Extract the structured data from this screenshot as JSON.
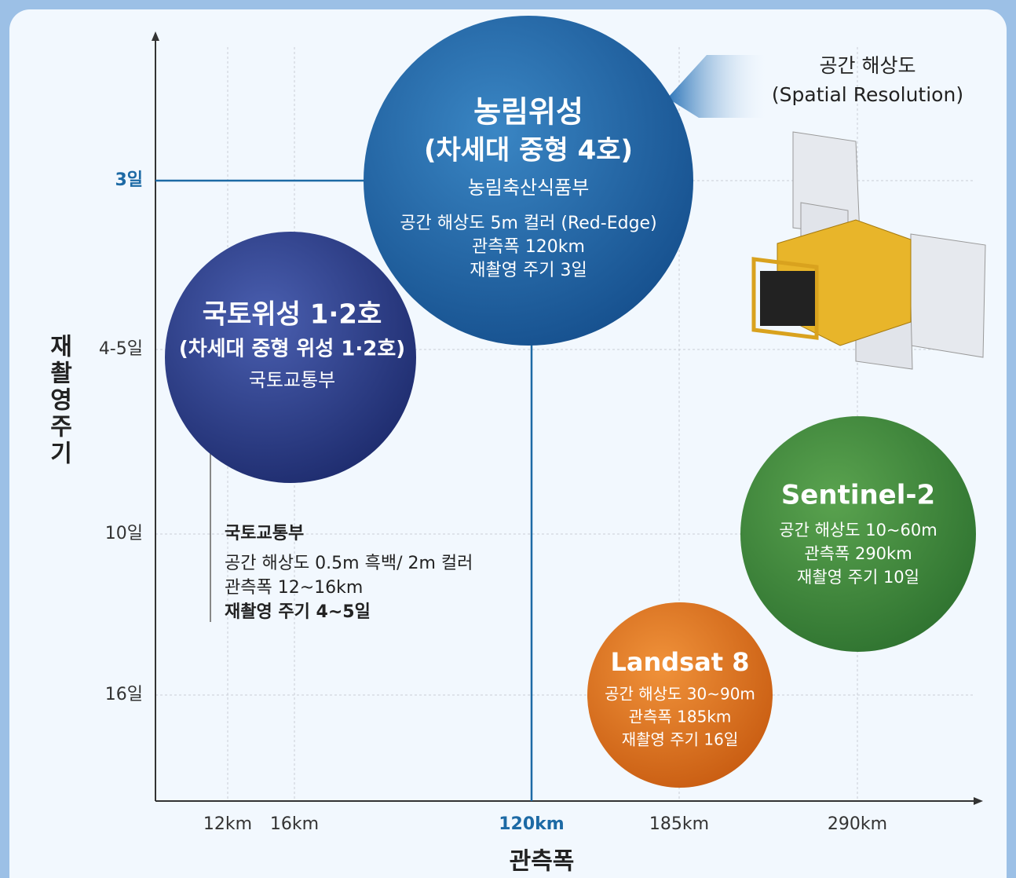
{
  "y_axis": {
    "title": "재촬영주기",
    "ticks": [
      "3일",
      "4-5일",
      "10일",
      "16일"
    ]
  },
  "x_axis": {
    "title": "관측폭",
    "ticks": [
      "12km",
      "16km",
      "120km",
      "185km",
      "290km"
    ]
  },
  "legend": {
    "title": "공간 해상도",
    "subtitle": "(Spatial Resolution)"
  },
  "bubbles": [
    {
      "title": "농림위성",
      "subtitle": "(차세대 중형 4호)",
      "lines": [
        "농림축산식품부",
        "공간 해상도 5m 컬러 (Red-Edge)",
        "관측폭 120km",
        "재촬영 주기 3일"
      ]
    },
    {
      "title": "국토위성 1·2호",
      "subtitle": "(차세대 중형 위성 1·2호)",
      "lines": [
        "국토교통부"
      ]
    },
    {
      "title": "Sentinel-2",
      "lines": [
        "공간 해상도 10~60m",
        "관측폭 290km",
        "재촬영 주기 10일"
      ]
    },
    {
      "title": "Landsat 8",
      "lines": [
        "공간 해상도 30~90m",
        "관측폭 185km",
        "재촬영 주기 16일"
      ]
    }
  ],
  "note": {
    "title": "국토교통부",
    "lines": [
      "공간 해상도 0.5m 흑백/ 2m 컬러",
      "관측폭 12~16km",
      "재촬영 주기 4~5일"
    ]
  }
}
